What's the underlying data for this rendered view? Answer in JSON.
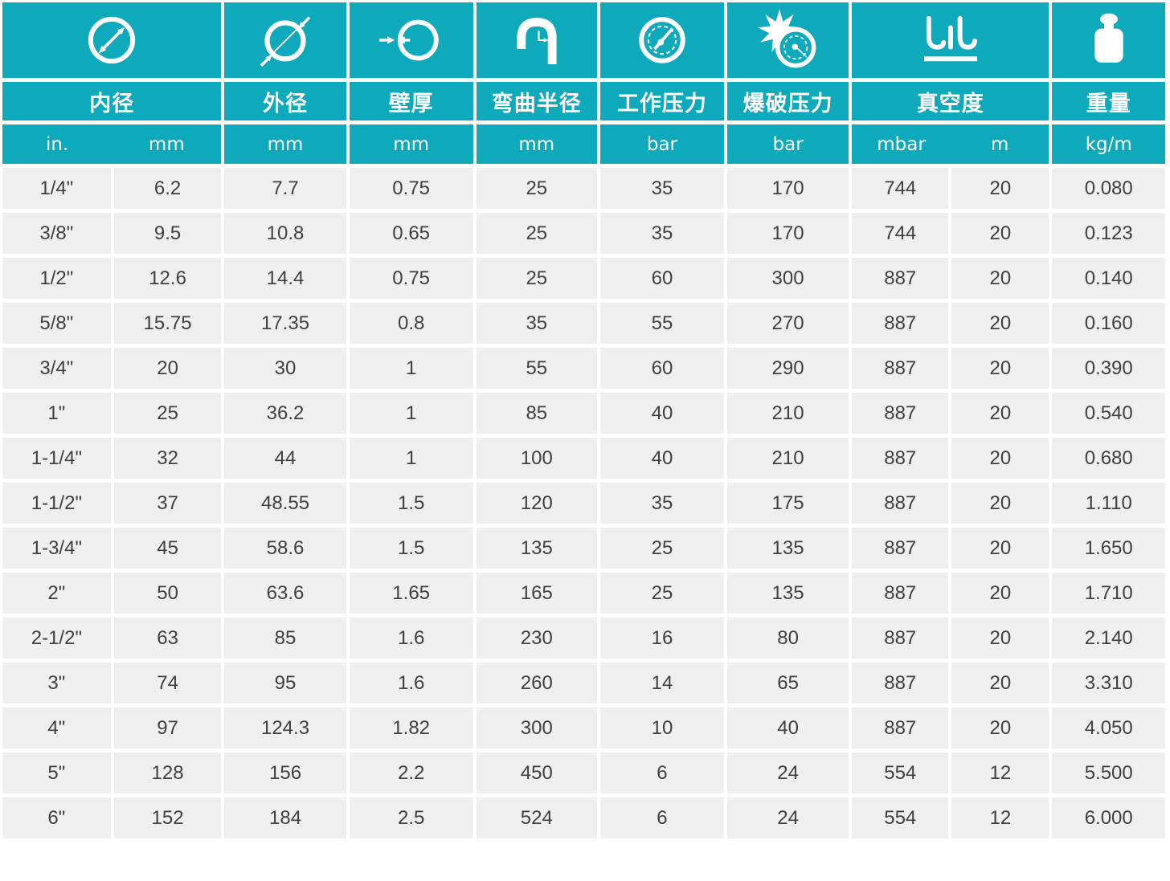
{
  "colors": {
    "accent": "#0FA9BC",
    "cell_background": "#EFEFEF",
    "text_dark": "#3F3F3F",
    "divider_white": "#FFFFFF"
  },
  "table": {
    "columns": [
      {
        "key": "inner_diameter",
        "label": "内径",
        "icon": "inner-diameter-icon",
        "span": 2,
        "units": [
          "in.",
          "mm"
        ]
      },
      {
        "key": "outer_diameter",
        "label": "外径",
        "icon": "outer-diameter-icon",
        "span": 1,
        "units": [
          "mm"
        ]
      },
      {
        "key": "wall_thickness",
        "label": "壁厚",
        "icon": "wall-thickness-icon",
        "span": 1,
        "units": [
          "mm"
        ]
      },
      {
        "key": "bend_radius",
        "label": "弯曲半径",
        "icon": "bend-radius-icon",
        "span": 1,
        "units": [
          "mm"
        ]
      },
      {
        "key": "working_pressure",
        "label": "工作压力",
        "icon": "working-pressure-icon",
        "span": 1,
        "units": [
          "bar"
        ]
      },
      {
        "key": "burst_pressure",
        "label": "爆破压力",
        "icon": "burst-pressure-icon",
        "span": 1,
        "units": [
          "bar"
        ]
      },
      {
        "key": "vacuum",
        "label": "真空度",
        "icon": "vacuum-icon",
        "span": 2,
        "units": [
          "mbar",
          "m"
        ]
      },
      {
        "key": "weight",
        "label": "重量",
        "icon": "weight-icon",
        "span": 1,
        "units": [
          "kg/m"
        ]
      }
    ],
    "rows": [
      [
        "1/4\"",
        "6.2",
        "7.7",
        "0.75",
        "25",
        "35",
        "170",
        "744",
        "20",
        "0.080"
      ],
      [
        "3/8\"",
        "9.5",
        "10.8",
        "0.65",
        "25",
        "35",
        "170",
        "744",
        "20",
        "0.123"
      ],
      [
        "1/2\"",
        "12.6",
        "14.4",
        "0.75",
        "25",
        "60",
        "300",
        "887",
        "20",
        "0.140"
      ],
      [
        "5/8\"",
        "15.75",
        "17.35",
        "0.8",
        "35",
        "55",
        "270",
        "887",
        "20",
        "0.160"
      ],
      [
        "3/4\"",
        "20",
        "30",
        "1",
        "55",
        "60",
        "290",
        "887",
        "20",
        "0.390"
      ],
      [
        "1\"",
        "25",
        "36.2",
        "1",
        "85",
        "40",
        "210",
        "887",
        "20",
        "0.540"
      ],
      [
        "1-1/4\"",
        "32",
        "44",
        "1",
        "100",
        "40",
        "210",
        "887",
        "20",
        "0.680"
      ],
      [
        "1-1/2\"",
        "37",
        "48.55",
        "1.5",
        "120",
        "35",
        "175",
        "887",
        "20",
        "1.110"
      ],
      [
        "1-3/4\"",
        "45",
        "58.6",
        "1.5",
        "135",
        "25",
        "135",
        "887",
        "20",
        "1.650"
      ],
      [
        "2\"",
        "50",
        "63.6",
        "1.65",
        "165",
        "25",
        "135",
        "887",
        "20",
        "1.710"
      ],
      [
        "2-1/2\"",
        "63",
        "85",
        "1.6",
        "230",
        "16",
        "80",
        "887",
        "20",
        "2.140"
      ],
      [
        "3\"",
        "74",
        "95",
        "1.6",
        "260",
        "14",
        "65",
        "887",
        "20",
        "3.310"
      ],
      [
        "4\"",
        "97",
        "124.3",
        "1.82",
        "300",
        "10",
        "40",
        "887",
        "20",
        "4.050"
      ],
      [
        "5\"",
        "128",
        "156",
        "2.2",
        "450",
        "6",
        "24",
        "554",
        "12",
        "5.500"
      ],
      [
        "6\"",
        "152",
        "184",
        "2.5",
        "524",
        "6",
        "24",
        "554",
        "12",
        "6.000"
      ]
    ]
  }
}
